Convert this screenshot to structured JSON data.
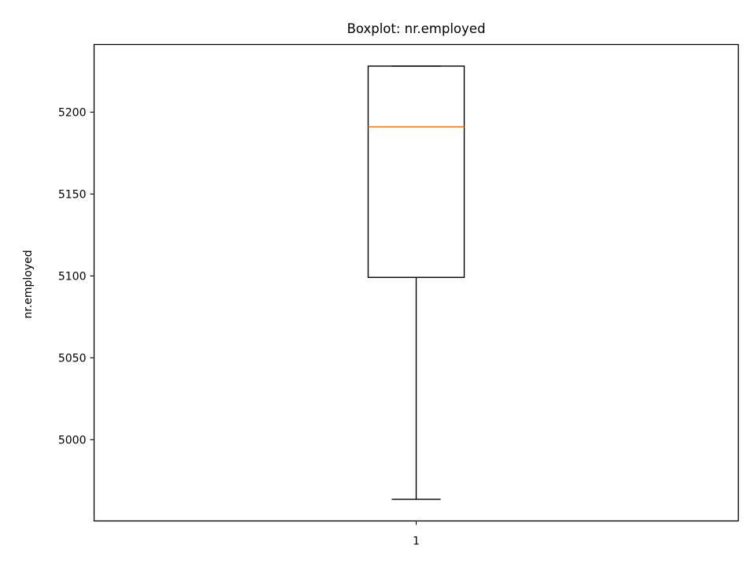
{
  "chart_data": {
    "type": "box",
    "title": "Boxplot: nr.employed",
    "xlabel": "",
    "ylabel": "nr.employed",
    "categories": [
      "1"
    ],
    "boxes": [
      {
        "category": "1",
        "whisker_low": 4963.6,
        "q1": 5099.1,
        "median": 5191.0,
        "q3": 5228.1,
        "whisker_high": 5228.1
      }
    ],
    "y_ticks": [
      5000,
      5050,
      5100,
      5150,
      5200
    ],
    "ylim": [
      4950.4,
      5241.3
    ],
    "grid": false,
    "colors": {
      "box": "#000000",
      "median": "#ff7f0e",
      "frame": "#000000"
    }
  }
}
